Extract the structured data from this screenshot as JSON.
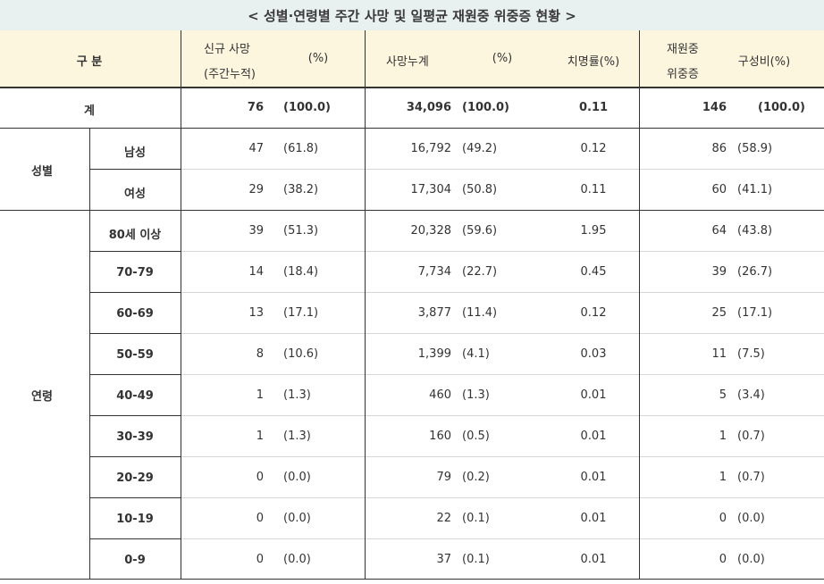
{
  "title": "< 성별·연령별 주간 사망 및 일평균 재원중 위중증 현황 >",
  "header": {
    "category": "구 분",
    "new_deaths_line1": "신규 사망",
    "new_deaths_line2": "(주간누적)",
    "pct1": "(%)",
    "cum_deaths": "사망누계",
    "pct2": "(%)",
    "fatality": "치명률(%)",
    "severe_line1": "재원중",
    "severe_line2": "위중증",
    "composition": "구성비(%)"
  },
  "total": {
    "label": "계",
    "new": "76",
    "new_pct": "(100.0)",
    "cum": "34,096",
    "cum_pct": "(100.0)",
    "fatality": "0.11",
    "severe": "146",
    "severe_pct": "(100.0)"
  },
  "sex": {
    "group_label": "성별",
    "rows": [
      {
        "label": "남성",
        "new": "47",
        "new_pct": "(61.8)",
        "cum": "16,792",
        "cum_pct": "(49.2)",
        "fatality": "0.12",
        "severe": "86",
        "severe_pct": "(58.9)"
      },
      {
        "label": "여성",
        "new": "29",
        "new_pct": "(38.2)",
        "cum": "17,304",
        "cum_pct": "(50.8)",
        "fatality": "0.11",
        "severe": "60",
        "severe_pct": "(41.1)"
      }
    ]
  },
  "age": {
    "group_label": "연령",
    "rows": [
      {
        "label": "80세 이상",
        "new": "39",
        "new_pct": "(51.3)",
        "cum": "20,328",
        "cum_pct": "(59.6)",
        "fatality": "1.95",
        "severe": "64",
        "severe_pct": "(43.8)"
      },
      {
        "label": "70-79",
        "new": "14",
        "new_pct": "(18.4)",
        "cum": "7,734",
        "cum_pct": "(22.7)",
        "fatality": "0.45",
        "severe": "39",
        "severe_pct": "(26.7)"
      },
      {
        "label": "60-69",
        "new": "13",
        "new_pct": "(17.1)",
        "cum": "3,877",
        "cum_pct": "(11.4)",
        "fatality": "0.12",
        "severe": "25",
        "severe_pct": "(17.1)"
      },
      {
        "label": "50-59",
        "new": "8",
        "new_pct": "(10.6)",
        "cum": "1,399",
        "cum_pct": "(4.1)",
        "fatality": "0.03",
        "severe": "11",
        "severe_pct": "(7.5)"
      },
      {
        "label": "40-49",
        "new": "1",
        "new_pct": "(1.3)",
        "cum": "460",
        "cum_pct": "(1.3)",
        "fatality": "0.01",
        "severe": "5",
        "severe_pct": "(3.4)"
      },
      {
        "label": "30-39",
        "new": "1",
        "new_pct": "(1.3)",
        "cum": "160",
        "cum_pct": "(0.5)",
        "fatality": "0.01",
        "severe": "1",
        "severe_pct": "(0.7)"
      },
      {
        "label": "20-29",
        "new": "0",
        "new_pct": "(0.0)",
        "cum": "79",
        "cum_pct": "(0.2)",
        "fatality": "0.01",
        "severe": "1",
        "severe_pct": "(0.7)"
      },
      {
        "label": "10-19",
        "new": "0",
        "new_pct": "(0.0)",
        "cum": "22",
        "cum_pct": "(0.1)",
        "fatality": "0.01",
        "severe": "0",
        "severe_pct": "(0.0)"
      },
      {
        "label": "0-9",
        "new": "0",
        "new_pct": "(0.0)",
        "cum": "37",
        "cum_pct": "(0.1)",
        "fatality": "0.01",
        "severe": "0",
        "severe_pct": "(0.0)"
      }
    ]
  }
}
